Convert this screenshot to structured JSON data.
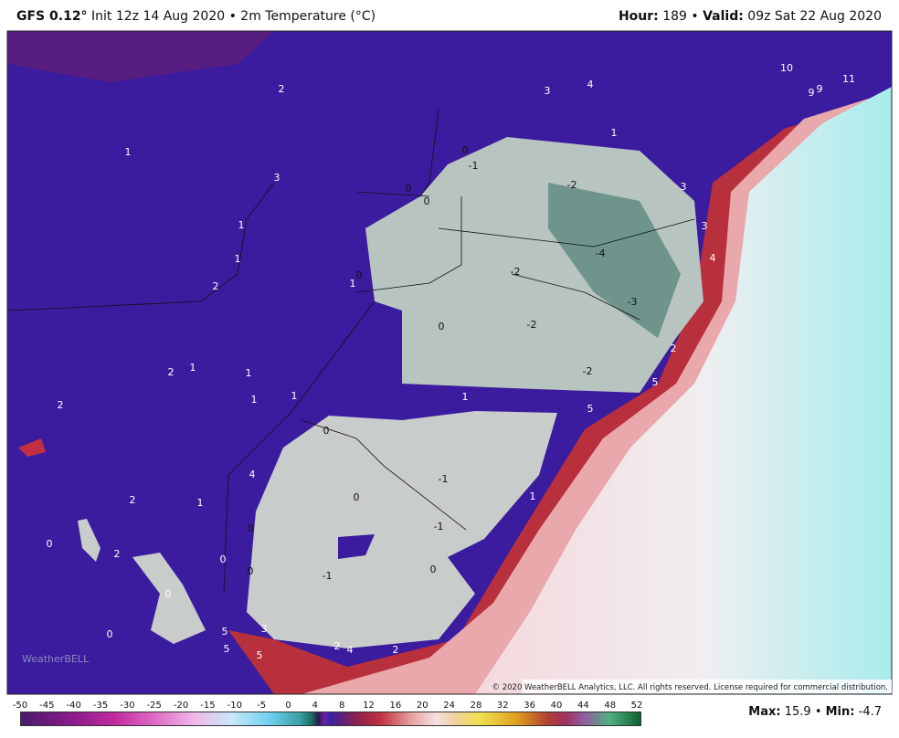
{
  "header": {
    "model": "GFS 0.12°",
    "info": "Init 12z 14 Aug 2020 • 2m Temperature (°C)",
    "hour_label": "Hour:",
    "hour": 189,
    "separator": "•",
    "valid_label": "Valid:",
    "valid": "09z Sat 22 Aug 2020"
  },
  "map": {
    "labels": [
      2,
      3,
      4,
      10,
      9,
      9,
      11,
      1,
      1,
      0,
      -1,
      3,
      0,
      0,
      -2,
      3,
      1,
      3,
      -4,
      1,
      4,
      0,
      1,
      -2,
      2,
      -3,
      0,
      -2,
      2,
      2,
      1,
      1,
      -2,
      5,
      1,
      1,
      2,
      1,
      5,
      0,
      -1,
      4,
      2,
      1,
      0,
      1,
      -1,
      0,
      0,
      2,
      0,
      0,
      0,
      -1,
      0,
      0,
      5,
      3,
      5,
      5,
      2,
      4,
      2
    ],
    "copyright": "© 2020 WeatherBELL Analytics, LLC. All rights reserved. License required for commercial distribution.",
    "logo": "WeatherBELL"
  },
  "colorbar": {
    "ticks": [
      -50,
      -45,
      -40,
      -35,
      -30,
      -25,
      -20,
      -15,
      -10,
      -5,
      0,
      4,
      8,
      12,
      16,
      20,
      24,
      28,
      32,
      36,
      40,
      44,
      48,
      52
    ]
  },
  "footer": {
    "max_label": "Max:",
    "max": 15.9,
    "separator": "•",
    "min_label": "Min:",
    "min": -4.7
  }
}
